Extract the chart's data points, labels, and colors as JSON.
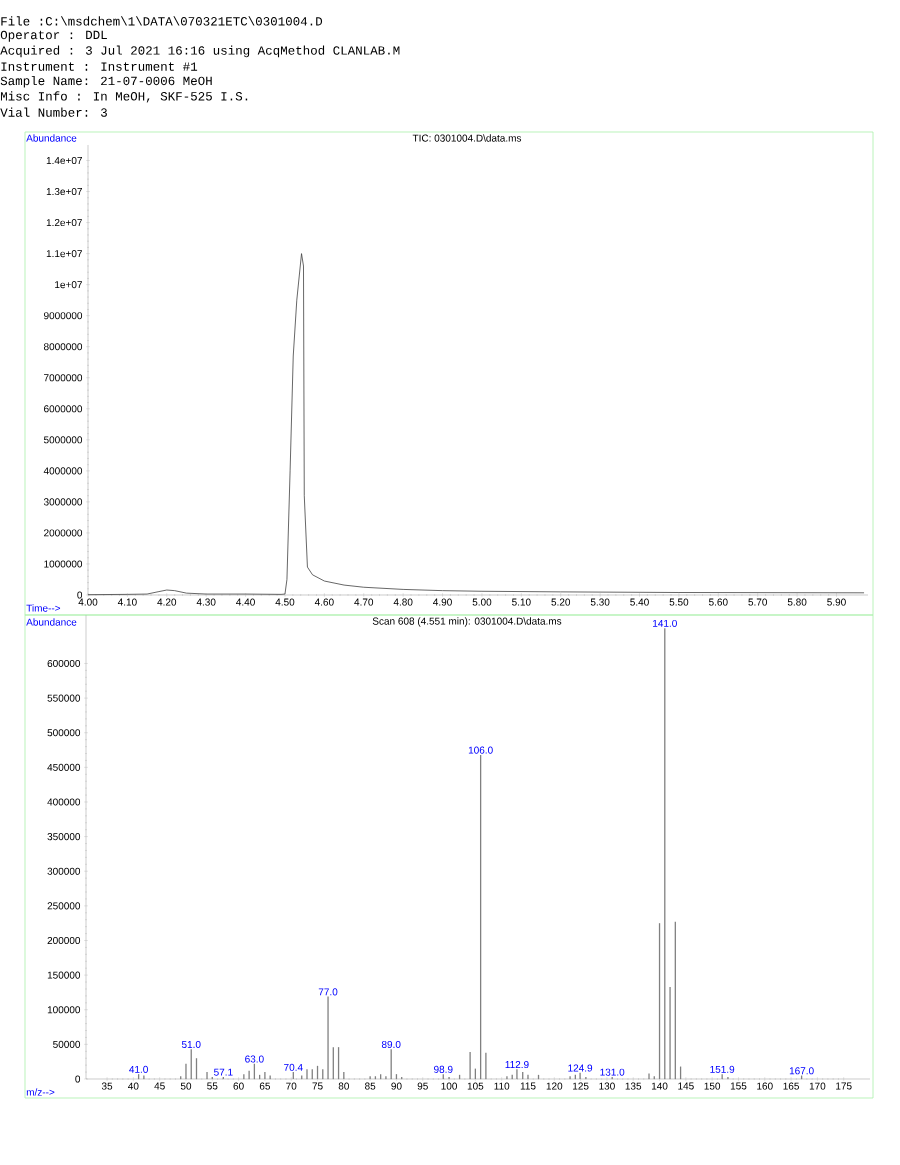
{
  "chart_data": [
    {
      "type": "line",
      "title": "TIC: 0301004.D\\data.ms",
      "xlabel": "Time-->",
      "ylabel": "Abundance",
      "annotations": [
        "File :C:\\msdchem\\1\\DATA\\070321ETC\\0301004.D",
        "Operator : DDL",
        "Acquired : 3 Jul 2021 16:16 using AcqMethod CLANLAB.M",
        "Instrument : Instrument #1",
        "Sample Name: 21-07-0006 MeOH",
        "Misc Info : In MeOH, SKF-525 I.S.",
        "Vial Number: 3"
      ],
      "color": "#404040",
      "x": [
        4.0,
        4.1,
        4.15,
        4.18,
        4.2,
        4.22,
        4.25,
        4.3,
        4.4,
        4.49,
        4.5,
        4.505,
        4.513,
        4.521,
        4.53,
        4.542,
        4.547,
        4.549,
        4.557,
        4.57,
        4.6,
        4.65,
        4.7,
        4.8,
        4.9,
        5.0,
        5.2,
        5.5,
        5.97
      ],
      "values": [
        10000,
        20000,
        30000,
        110000,
        160000,
        140000,
        60000,
        30000,
        30000,
        20000,
        30000,
        500000,
        4000000,
        7700000,
        9500000,
        11000000,
        10600000,
        3200000,
        900000,
        650000,
        450000,
        320000,
        250000,
        180000,
        140000,
        120000,
        100000,
        80000,
        70000
      ],
      "xlim": [
        4.0,
        5.98
      ],
      "ylim": [
        0,
        14500000
      ],
      "xticks": [
        {
          "value": 4.0,
          "label": "4.00"
        },
        {
          "value": 4.1,
          "label": "4.10"
        },
        {
          "value": 4.2,
          "label": "4.20"
        },
        {
          "value": 4.3,
          "label": "4.30"
        },
        {
          "value": 4.4,
          "label": "4.40"
        },
        {
          "value": 4.5,
          "label": "4.50"
        },
        {
          "value": 4.6,
          "label": "4.60"
        },
        {
          "value": 4.7,
          "label": "4.70"
        },
        {
          "value": 4.8,
          "label": "4.80"
        },
        {
          "value": 4.9,
          "label": "4.90"
        },
        {
          "value": 5.0,
          "label": "5.00"
        },
        {
          "value": 5.1,
          "label": "5.10"
        },
        {
          "value": 5.2,
          "label": "5.20"
        },
        {
          "value": 5.3,
          "label": "5.30"
        },
        {
          "value": 5.4,
          "label": "5.40"
        },
        {
          "value": 5.5,
          "label": "5.50"
        },
        {
          "value": 5.6,
          "label": "5.60"
        },
        {
          "value": 5.7,
          "label": "5.70"
        },
        {
          "value": 5.8,
          "label": "5.80"
        },
        {
          "value": 5.9,
          "label": "5.90"
        }
      ],
      "yticks": [
        0,
        1000000,
        2000000,
        3000000,
        4000000,
        5000000,
        6000000,
        7000000,
        8000000,
        9000000,
        {
          "value": 10000000,
          "label": "1e+07"
        },
        {
          "value": 11000000,
          "label": "1.1e+07"
        },
        {
          "value": 12000000,
          "label": "1.2e+07"
        },
        {
          "value": 13000000,
          "label": "1.3e+07"
        },
        {
          "value": 14000000,
          "label": "1.4e+07"
        }
      ]
    },
    {
      "type": "bar",
      "title": "Scan 608 (4.551 min): 0301004.D\\data.ms",
      "xlabel": "m/z-->",
      "ylabel": "Abundance",
      "color": "#808080",
      "x": [
        41.0,
        42,
        49,
        50,
        51.0,
        52,
        54,
        55,
        57.1,
        61,
        62,
        63.0,
        64,
        65,
        66,
        70.4,
        71,
        72,
        73,
        74,
        75,
        76,
        77.0,
        78,
        79,
        80,
        85,
        86,
        87,
        88,
        89.0,
        90,
        91,
        98.9,
        100,
        102,
        104,
        105,
        106.0,
        107,
        111,
        112,
        112.9,
        114,
        115,
        117,
        123,
        124,
        124.9,
        126,
        131.0,
        138,
        139,
        140,
        141.0,
        142,
        143,
        144,
        151.9,
        153,
        167.0
      ],
      "values": [
        7000,
        5000,
        4000,
        22000,
        43000,
        30000,
        10000,
        3000,
        3000,
        7000,
        12000,
        22000,
        6000,
        10000,
        5000,
        10000,
        null,
        5000,
        14000,
        14000,
        19000,
        14000,
        119000,
        46000,
        46000,
        10000,
        4000,
        4000,
        7000,
        4000,
        43000,
        7000,
        3000,
        7000,
        3000,
        6000,
        39000,
        15000,
        468000,
        38000,
        4000,
        6000,
        14000,
        10000,
        6000,
        6000,
        4000,
        6000,
        9000,
        3000,
        3000,
        8000,
        4000,
        225000,
        651000,
        133000,
        227000,
        18000,
        7000,
        3000,
        5000
      ],
      "annotations": [
        {
          "text": "41.0",
          "x": 41.0,
          "y": 7000
        },
        {
          "text": "51.0",
          "x": 51.0,
          "y": 43000
        },
        {
          "text": "57.1",
          "x": 57.1,
          "y": 3000
        },
        {
          "text": "63.0",
          "x": 63.0,
          "y": 22000
        },
        {
          "text": "70.4",
          "x": 70.4,
          "y": 10000
        },
        {
          "text": "77.0",
          "x": 77.0,
          "y": 119000
        },
        {
          "text": "89.0",
          "x": 89.0,
          "y": 43000
        },
        {
          "text": "98.9",
          "x": 98.9,
          "y": 7000
        },
        {
          "text": "106.0",
          "x": 106.0,
          "y": 468000
        },
        {
          "text": "112.9",
          "x": 112.9,
          "y": 14000
        },
        {
          "text": "124.9",
          "x": 124.9,
          "y": 9000
        },
        {
          "text": "131.0",
          "x": 131.0,
          "y": 3000
        },
        {
          "text": "141.0",
          "x": 141.0,
          "y": 651000
        },
        {
          "text": "151.9",
          "x": 151.9,
          "y": 7000
        },
        {
          "text": "167.0",
          "x": 167.0,
          "y": 5000
        }
      ],
      "xlim": [
        31,
        180
      ],
      "ylim": [
        0,
        670000
      ],
      "xticks": [
        35,
        40,
        45,
        50,
        55,
        60,
        65,
        70,
        75,
        80,
        85,
        90,
        95,
        100,
        105,
        110,
        115,
        120,
        125,
        130,
        135,
        140,
        145,
        150,
        155,
        160,
        165,
        170,
        175
      ],
      "yticks": [
        0,
        50000,
        100000,
        150000,
        200000,
        250000,
        300000,
        350000,
        400000,
        450000,
        500000,
        550000,
        600000
      ]
    }
  ]
}
